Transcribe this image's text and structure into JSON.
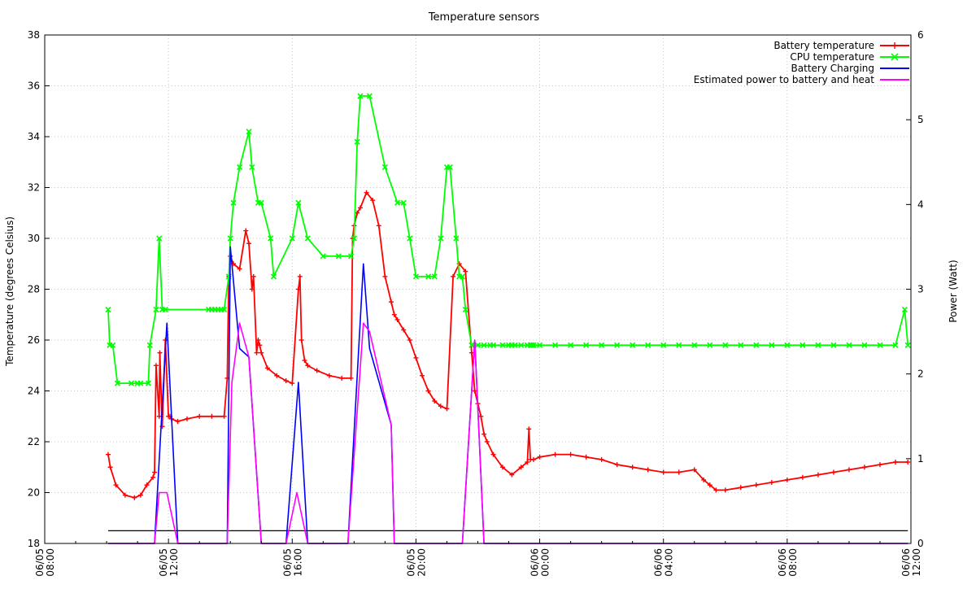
{
  "chart_data": {
    "type": "line",
    "title": "Temperature sensors",
    "ylabel": "Temperature (degrees Celsius)",
    "y2label": "Power (Watt)",
    "ylim": [
      18,
      38
    ],
    "y2lim": [
      0,
      6
    ],
    "xlim": [
      "06/05 08:00",
      "06/06 12:00"
    ],
    "x_unit": "hours since 06/05 00:00",
    "grid": true,
    "legend_position": "top-right",
    "yticks": [
      18,
      20,
      22,
      24,
      26,
      28,
      30,
      32,
      34,
      36,
      38
    ],
    "y2ticks": [
      0,
      1,
      2,
      3,
      4,
      5,
      6
    ],
    "xticks": [
      {
        "x": 8,
        "date": "06/05",
        "time": "08:00"
      },
      {
        "x": 12,
        "date": "06/05",
        "time": "12:00"
      },
      {
        "x": 16,
        "date": "06/05",
        "time": "16:00"
      },
      {
        "x": 20,
        "date": "06/05",
        "time": "20:00"
      },
      {
        "x": 24,
        "date": "06/06",
        "time": "00:00"
      },
      {
        "x": 28,
        "date": "06/06",
        "time": "04:00"
      },
      {
        "x": 32,
        "date": "06/06",
        "time": "08:00"
      },
      {
        "x": 36,
        "date": "06/06",
        "time": "12:00"
      }
    ],
    "series": [
      {
        "name": "Battery temperature",
        "axis": "left",
        "color": "#ff0000",
        "marker": "plus",
        "x": [
          10.05,
          10.12,
          10.3,
          10.6,
          10.9,
          11.1,
          11.3,
          11.5,
          11.55,
          11.6,
          11.7,
          11.72,
          11.8,
          11.9,
          12.0,
          12.05,
          12.1,
          12.3,
          12.6,
          13.0,
          13.4,
          13.8,
          13.9,
          13.95,
          14.0,
          14.1,
          14.3,
          14.5,
          14.6,
          14.7,
          14.75,
          14.85,
          14.9,
          14.95,
          15.0,
          15.2,
          15.5,
          15.8,
          16.0,
          16.2,
          16.25,
          16.3,
          16.4,
          16.5,
          16.8,
          17.2,
          17.6,
          17.9,
          17.95,
          18.0,
          18.1,
          18.2,
          18.4,
          18.6,
          18.8,
          19.0,
          19.2,
          19.3,
          19.4,
          19.6,
          19.8,
          20.0,
          20.2,
          20.4,
          20.6,
          20.8,
          21.0,
          21.2,
          21.4,
          21.6,
          21.8,
          21.9,
          22.0,
          22.1,
          22.2,
          22.3,
          22.5,
          22.8,
          23.1,
          23.4,
          23.6,
          23.65,
          23.7,
          23.8,
          24.0,
          24.5,
          25.0,
          25.5,
          26.0,
          26.5,
          27.0,
          27.5,
          28.0,
          28.5,
          29.0,
          29.3,
          29.5,
          29.7,
          30.0,
          30.5,
          31.0,
          31.5,
          32.0,
          32.5,
          33.0,
          33.5,
          34.0,
          34.5,
          35.0,
          35.5,
          35.9
        ],
        "y": [
          21.5,
          21.0,
          20.3,
          19.9,
          19.8,
          19.9,
          20.3,
          20.6,
          20.8,
          25.0,
          23.0,
          25.5,
          22.6,
          26.0,
          23.0,
          23.0,
          22.9,
          22.8,
          22.9,
          23.0,
          23.0,
          23.0,
          24.5,
          28.5,
          29.3,
          29.0,
          28.8,
          30.3,
          29.8,
          28.0,
          28.5,
          25.5,
          26.0,
          25.8,
          25.5,
          24.9,
          24.6,
          24.4,
          24.3,
          28.0,
          28.5,
          26.0,
          25.2,
          25.0,
          24.8,
          24.6,
          24.5,
          24.5,
          30.0,
          30.5,
          31.0,
          31.2,
          31.8,
          31.5,
          30.5,
          28.5,
          27.5,
          27.0,
          26.8,
          26.4,
          26.0,
          25.3,
          24.6,
          24.0,
          23.6,
          23.4,
          23.3,
          28.5,
          29.0,
          28.7,
          25.5,
          24.0,
          23.5,
          23.0,
          22.3,
          22.0,
          21.5,
          21.0,
          20.7,
          21.0,
          21.2,
          22.5,
          21.3,
          21.3,
          21.4,
          21.5,
          21.5,
          21.4,
          21.3,
          21.1,
          21.0,
          20.9,
          20.8,
          20.8,
          20.9,
          20.5,
          20.3,
          20.1,
          20.1,
          20.2,
          20.3,
          20.4,
          20.5,
          20.6,
          20.7,
          20.8,
          20.9,
          21.0,
          21.1,
          21.2,
          21.2
        ]
      },
      {
        "name": "CPU temperature",
        "axis": "left",
        "color": "#00ff00",
        "marker": "cross",
        "x": [
          10.05,
          10.1,
          10.2,
          10.35,
          10.8,
          11.0,
          11.1,
          11.35,
          11.4,
          11.6,
          11.7,
          11.8,
          11.9,
          13.3,
          13.4,
          13.5,
          13.6,
          13.7,
          13.8,
          13.95,
          14.0,
          14.1,
          14.3,
          14.6,
          14.7,
          14.9,
          15.0,
          15.3,
          15.4,
          16.0,
          16.2,
          16.5,
          17.0,
          17.5,
          17.9,
          18.0,
          18.1,
          18.2,
          18.5,
          19.0,
          19.4,
          19.6,
          19.8,
          20.0,
          20.4,
          20.6,
          20.8,
          21.0,
          21.1,
          21.3,
          21.4,
          21.5,
          21.6,
          21.8,
          22.0,
          22.2,
          22.4,
          22.5,
          22.8,
          23.0,
          23.1,
          23.2,
          23.4,
          23.6,
          23.7,
          23.75,
          23.8,
          24.0,
          24.5,
          25.0,
          25.5,
          26.0,
          26.5,
          27.0,
          27.5,
          28.0,
          28.5,
          29.0,
          29.5,
          30.0,
          30.5,
          31.0,
          31.5,
          32.0,
          32.5,
          33.0,
          33.5,
          34.0,
          34.5,
          35.0,
          35.5,
          35.8,
          35.9
        ],
        "y": [
          27.2,
          25.8,
          25.8,
          24.3,
          24.3,
          24.3,
          24.3,
          24.3,
          25.8,
          27.2,
          30.0,
          27.2,
          27.2,
          27.2,
          27.2,
          27.2,
          27.2,
          27.2,
          27.2,
          28.5,
          30.0,
          31.4,
          32.8,
          34.2,
          32.8,
          31.4,
          31.4,
          30.0,
          28.5,
          30.0,
          31.4,
          30.0,
          29.3,
          29.3,
          29.3,
          30.0,
          33.8,
          35.6,
          35.6,
          32.8,
          31.4,
          31.4,
          30.0,
          28.5,
          28.5,
          28.5,
          30.0,
          32.8,
          32.8,
          30.0,
          28.5,
          28.5,
          27.2,
          25.8,
          25.8,
          25.8,
          25.8,
          25.8,
          25.8,
          25.8,
          25.8,
          25.8,
          25.8,
          25.8,
          25.8,
          25.8,
          25.8,
          25.8,
          25.8,
          25.8,
          25.8,
          25.8,
          25.8,
          25.8,
          25.8,
          25.8,
          25.8,
          25.8,
          25.8,
          25.8,
          25.8,
          25.8,
          25.8,
          25.8,
          25.8,
          25.8,
          25.8,
          25.8,
          25.8,
          25.8,
          25.8,
          27.2,
          25.8
        ]
      },
      {
        "name": "Battery Charging",
        "axis": "right",
        "color": "#0000ff",
        "marker": "none",
        "x": [
          10.05,
          11.55,
          11.95,
          12.3,
          13.9,
          14.0,
          14.3,
          14.6,
          15.0,
          15.8,
          16.2,
          16.5,
          17.8,
          18.3,
          18.5,
          19.2,
          19.3,
          21.5,
          21.9,
          22.2,
          35.9
        ],
        "y": [
          0,
          0,
          2.6,
          0,
          0,
          3.5,
          2.3,
          2.2,
          0,
          0,
          1.9,
          0,
          0,
          3.3,
          2.3,
          1.4,
          0,
          0,
          2.4,
          0,
          0
        ]
      },
      {
        "name": "Estimated power to battery and heat",
        "axis": "right",
        "color": "#ff00ff",
        "marker": "none",
        "x": [
          10.05,
          11.55,
          11.7,
          11.95,
          12.3,
          13.9,
          14.05,
          14.3,
          14.6,
          15.0,
          15.8,
          16.15,
          16.5,
          17.8,
          18.3,
          18.5,
          19.2,
          19.3,
          21.5,
          21.9,
          22.2,
          35.9
        ],
        "y": [
          0,
          0,
          0.6,
          0.6,
          0,
          0,
          1.9,
          2.6,
          2.2,
          0,
          0,
          0.6,
          0,
          0,
          2.6,
          2.5,
          1.4,
          0,
          0,
          2.4,
          0,
          0
        ]
      }
    ],
    "reference_line": {
      "y": 18.5,
      "x_from": 10.05,
      "x_to": 35.9,
      "color": "#000000"
    }
  }
}
